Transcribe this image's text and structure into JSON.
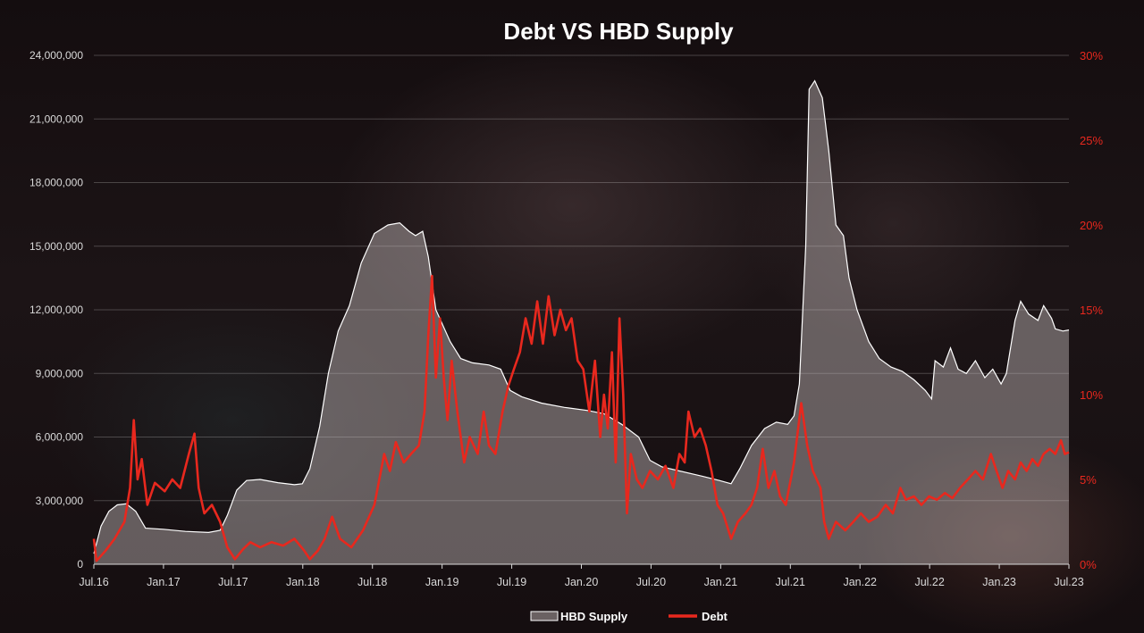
{
  "chart_data": {
    "type": "line",
    "title": "Debt VS HBD Supply",
    "x_ticks": [
      "Jul.16",
      "Jan.17",
      "Jul.17",
      "Jan.18",
      "Jul.18",
      "Jan.19",
      "Jul.19",
      "Jan.20",
      "Jul.20",
      "Jan.21",
      "Jul.21",
      "Jan.22",
      "Jul.22",
      "Jan.23",
      "Jul.23"
    ],
    "y_left": {
      "ticks": [
        "0",
        "3,000,000",
        "6,000,000",
        "9,000,000",
        "12,000,000",
        "15,000,000",
        "18,000,000",
        "21,000,000",
        "24,000,000"
      ],
      "range": [
        0,
        24000000
      ]
    },
    "y_right": {
      "ticks": [
        "0%",
        "5%",
        "10%",
        "15%",
        "20%",
        "25%",
        "30%"
      ],
      "range": [
        0,
        30
      ],
      "color": "#e8281e"
    },
    "legend": {
      "position": "bottom",
      "items": [
        "HBD Supply",
        "Debt"
      ]
    },
    "grid": true,
    "series": [
      {
        "name": "HBD Supply",
        "type": "area",
        "axis": "left",
        "color": "#ffffff",
        "fill": "rgba(210,200,200,0.42)",
        "points": [
          [
            "2016-07-01",
            500000
          ],
          [
            "2016-07-20",
            1800000
          ],
          [
            "2016-08-10",
            2500000
          ],
          [
            "2016-09-01",
            2800000
          ],
          [
            "2016-09-25",
            2850000
          ],
          [
            "2016-10-20",
            2500000
          ],
          [
            "2016-11-15",
            1700000
          ],
          [
            "2017-01-01",
            1650000
          ],
          [
            "2017-03-01",
            1550000
          ],
          [
            "2017-05-01",
            1500000
          ],
          [
            "2017-06-01",
            1600000
          ],
          [
            "2017-06-20",
            2300000
          ],
          [
            "2017-07-15",
            3500000
          ],
          [
            "2017-08-10",
            3950000
          ],
          [
            "2017-09-15",
            4000000
          ],
          [
            "2017-11-01",
            3850000
          ],
          [
            "2017-12-15",
            3750000
          ],
          [
            "2018-01-05",
            3800000
          ],
          [
            "2018-01-25",
            4500000
          ],
          [
            "2018-02-20",
            6500000
          ],
          [
            "2018-03-15",
            9000000
          ],
          [
            "2018-04-10",
            11000000
          ],
          [
            "2018-05-10",
            12200000
          ],
          [
            "2018-06-10",
            14200000
          ],
          [
            "2018-07-15",
            15600000
          ],
          [
            "2018-08-20",
            16000000
          ],
          [
            "2018-09-20",
            16100000
          ],
          [
            "2018-10-15",
            15700000
          ],
          [
            "2018-11-01",
            15500000
          ],
          [
            "2018-11-20",
            15700000
          ],
          [
            "2018-12-05",
            14500000
          ],
          [
            "2018-12-25",
            12000000
          ],
          [
            "2019-02-01",
            10500000
          ],
          [
            "2019-03-01",
            9700000
          ],
          [
            "2019-04-01",
            9500000
          ],
          [
            "2019-05-15",
            9400000
          ],
          [
            "2019-06-15",
            9200000
          ],
          [
            "2019-07-10",
            8200000
          ],
          [
            "2019-08-10",
            7900000
          ],
          [
            "2019-10-01",
            7600000
          ],
          [
            "2019-12-01",
            7400000
          ],
          [
            "2020-02-01",
            7250000
          ],
          [
            "2020-03-15",
            7100000
          ],
          [
            "2020-05-01",
            6600000
          ],
          [
            "2020-06-15",
            6000000
          ],
          [
            "2020-07-15",
            4900000
          ],
          [
            "2020-08-15",
            4600000
          ],
          [
            "2020-10-01",
            4400000
          ],
          [
            "2020-12-01",
            4150000
          ],
          [
            "2021-01-15",
            3950000
          ],
          [
            "2021-02-15",
            3800000
          ],
          [
            "2021-03-10",
            4500000
          ],
          [
            "2021-04-10",
            5600000
          ],
          [
            "2021-05-15",
            6400000
          ],
          [
            "2021-06-15",
            6700000
          ],
          [
            "2021-07-15",
            6600000
          ],
          [
            "2021-08-01",
            7000000
          ],
          [
            "2021-08-15",
            8500000
          ],
          [
            "2021-09-01",
            15000000
          ],
          [
            "2021-09-10",
            22400000
          ],
          [
            "2021-09-25",
            22800000
          ],
          [
            "2021-10-15",
            22000000
          ],
          [
            "2021-11-01",
            19500000
          ],
          [
            "2021-11-20",
            16000000
          ],
          [
            "2021-12-10",
            15500000
          ],
          [
            "2021-12-25",
            13500000
          ],
          [
            "2022-01-15",
            12000000
          ],
          [
            "2022-02-15",
            10500000
          ],
          [
            "2022-03-15",
            9700000
          ],
          [
            "2022-04-15",
            9300000
          ],
          [
            "2022-05-15",
            9100000
          ],
          [
            "2022-06-15",
            8700000
          ],
          [
            "2022-07-15",
            8200000
          ],
          [
            "2022-08-01",
            7800000
          ],
          [
            "2022-08-10",
            9600000
          ],
          [
            "2022-09-01",
            9300000
          ],
          [
            "2022-09-20",
            10200000
          ],
          [
            "2022-10-10",
            9200000
          ],
          [
            "2022-11-01",
            9000000
          ],
          [
            "2022-11-25",
            9600000
          ],
          [
            "2022-12-20",
            8800000
          ],
          [
            "2023-01-10",
            9200000
          ],
          [
            "2023-02-01",
            8500000
          ],
          [
            "2023-02-15",
            9000000
          ],
          [
            "2023-03-10",
            11500000
          ],
          [
            "2023-03-25",
            12400000
          ],
          [
            "2023-04-15",
            11800000
          ],
          [
            "2023-05-10",
            11500000
          ],
          [
            "2023-05-25",
            12200000
          ],
          [
            "2023-06-15",
            11600000
          ],
          [
            "2023-06-25",
            11100000
          ],
          [
            "2023-07-15",
            11000000
          ],
          [
            "2023-07-31",
            11050000
          ]
        ]
      },
      {
        "name": "Debt",
        "type": "line",
        "axis": "right",
        "color": "#e8281e",
        "points": [
          [
            "2016-07-01",
            1.5
          ],
          [
            "2016-07-08",
            0.2
          ],
          [
            "2016-08-01",
            0.8
          ],
          [
            "2016-08-25",
            1.5
          ],
          [
            "2016-09-20",
            2.5
          ],
          [
            "2016-10-05",
            4.5
          ],
          [
            "2016-10-15",
            8.5
          ],
          [
            "2016-10-25",
            5.0
          ],
          [
            "2016-11-05",
            6.2
          ],
          [
            "2016-11-20",
            3.5
          ],
          [
            "2016-12-10",
            4.8
          ],
          [
            "2017-01-05",
            4.3
          ],
          [
            "2017-01-25",
            5.0
          ],
          [
            "2017-02-15",
            4.5
          ],
          [
            "2017-03-10",
            6.5
          ],
          [
            "2017-03-25",
            7.7
          ],
          [
            "2017-04-05",
            4.5
          ],
          [
            "2017-04-20",
            3.0
          ],
          [
            "2017-05-10",
            3.5
          ],
          [
            "2017-06-01",
            2.5
          ],
          [
            "2017-06-20",
            1.0
          ],
          [
            "2017-07-10",
            0.3
          ],
          [
            "2017-08-01",
            0.9
          ],
          [
            "2017-08-20",
            1.3
          ],
          [
            "2017-09-15",
            1.0
          ],
          [
            "2017-10-15",
            1.3
          ],
          [
            "2017-11-15",
            1.1
          ],
          [
            "2017-12-15",
            1.5
          ],
          [
            "2018-01-10",
            0.8
          ],
          [
            "2018-01-25",
            0.3
          ],
          [
            "2018-02-15",
            0.8
          ],
          [
            "2018-03-05",
            1.5
          ],
          [
            "2018-03-25",
            2.8
          ],
          [
            "2018-04-15",
            1.5
          ],
          [
            "2018-05-15",
            1.0
          ],
          [
            "2018-06-15",
            2.0
          ],
          [
            "2018-07-15",
            3.5
          ],
          [
            "2018-08-10",
            6.5
          ],
          [
            "2018-08-25",
            5.5
          ],
          [
            "2018-09-10",
            7.2
          ],
          [
            "2018-10-01",
            6.0
          ],
          [
            "2018-10-20",
            6.5
          ],
          [
            "2018-11-10",
            7.0
          ],
          [
            "2018-11-25",
            9.0
          ],
          [
            "2018-12-05",
            13.5
          ],
          [
            "2018-12-15",
            17.0
          ],
          [
            "2018-12-25",
            11.0
          ],
          [
            "2019-01-05",
            14.5
          ],
          [
            "2019-01-15",
            11.0
          ],
          [
            "2019-01-25",
            8.5
          ],
          [
            "2019-02-05",
            12.0
          ],
          [
            "2019-02-20",
            9.0
          ],
          [
            "2019-03-10",
            6.0
          ],
          [
            "2019-03-25",
            7.5
          ],
          [
            "2019-04-15",
            6.5
          ],
          [
            "2019-05-01",
            9.0
          ],
          [
            "2019-05-15",
            7.0
          ],
          [
            "2019-06-01",
            6.5
          ],
          [
            "2019-06-20",
            9.0
          ],
          [
            "2019-07-05",
            10.5
          ],
          [
            "2019-07-20",
            11.5
          ],
          [
            "2019-08-05",
            12.5
          ],
          [
            "2019-08-20",
            14.5
          ],
          [
            "2019-09-05",
            13.0
          ],
          [
            "2019-09-20",
            15.5
          ],
          [
            "2019-10-05",
            13.0
          ],
          [
            "2019-10-20",
            15.8
          ],
          [
            "2019-11-05",
            13.5
          ],
          [
            "2019-11-20",
            15.0
          ],
          [
            "2019-12-05",
            13.8
          ],
          [
            "2019-12-20",
            14.5
          ],
          [
            "2020-01-05",
            12.0
          ],
          [
            "2020-01-20",
            11.5
          ],
          [
            "2020-02-05",
            9.0
          ],
          [
            "2020-02-20",
            12.0
          ],
          [
            "2020-03-05",
            7.5
          ],
          [
            "2020-03-15",
            10.0
          ],
          [
            "2020-03-25",
            8.0
          ],
          [
            "2020-04-05",
            12.5
          ],
          [
            "2020-04-15",
            6.0
          ],
          [
            "2020-04-25",
            14.5
          ],
          [
            "2020-05-05",
            10.0
          ],
          [
            "2020-05-15",
            3.0
          ],
          [
            "2020-05-25",
            6.5
          ],
          [
            "2020-06-10",
            5.0
          ],
          [
            "2020-06-25",
            4.5
          ],
          [
            "2020-07-15",
            5.5
          ],
          [
            "2020-08-05",
            5.0
          ],
          [
            "2020-08-25",
            5.8
          ],
          [
            "2020-09-15",
            4.5
          ],
          [
            "2020-10-01",
            6.5
          ],
          [
            "2020-10-15",
            6.0
          ],
          [
            "2020-10-25",
            9.0
          ],
          [
            "2020-11-10",
            7.5
          ],
          [
            "2020-11-25",
            8.0
          ],
          [
            "2020-12-10",
            7.0
          ],
          [
            "2020-12-25",
            5.5
          ],
          [
            "2021-01-10",
            3.5
          ],
          [
            "2021-01-25",
            3.0
          ],
          [
            "2021-02-15",
            1.5
          ],
          [
            "2021-03-05",
            2.5
          ],
          [
            "2021-03-25",
            3.0
          ],
          [
            "2021-04-10",
            3.5
          ],
          [
            "2021-04-25",
            4.5
          ],
          [
            "2021-05-10",
            6.8
          ],
          [
            "2021-05-25",
            4.5
          ],
          [
            "2021-06-10",
            5.5
          ],
          [
            "2021-06-25",
            4.0
          ],
          [
            "2021-07-10",
            3.5
          ],
          [
            "2021-08-01",
            6.0
          ],
          [
            "2021-08-20",
            9.5
          ],
          [
            "2021-09-05",
            7.0
          ],
          [
            "2021-09-20",
            5.5
          ],
          [
            "2021-10-10",
            4.5
          ],
          [
            "2021-10-20",
            2.5
          ],
          [
            "2021-11-01",
            1.5
          ],
          [
            "2021-11-20",
            2.5
          ],
          [
            "2021-12-15",
            2.0
          ],
          [
            "2022-01-05",
            2.5
          ],
          [
            "2022-01-25",
            3.0
          ],
          [
            "2022-02-15",
            2.5
          ],
          [
            "2022-03-10",
            2.8
          ],
          [
            "2022-04-01",
            3.5
          ],
          [
            "2022-04-20",
            3.0
          ],
          [
            "2022-05-10",
            4.5
          ],
          [
            "2022-05-25",
            3.8
          ],
          [
            "2022-06-15",
            4.0
          ],
          [
            "2022-07-05",
            3.5
          ],
          [
            "2022-07-25",
            4.0
          ],
          [
            "2022-08-15",
            3.8
          ],
          [
            "2022-09-05",
            4.2
          ],
          [
            "2022-09-25",
            3.9
          ],
          [
            "2022-10-15",
            4.5
          ],
          [
            "2022-11-05",
            5.0
          ],
          [
            "2022-11-25",
            5.5
          ],
          [
            "2022-12-15",
            5.0
          ],
          [
            "2023-01-05",
            6.5
          ],
          [
            "2023-01-20",
            5.5
          ],
          [
            "2023-02-05",
            4.5
          ],
          [
            "2023-02-20",
            5.5
          ],
          [
            "2023-03-10",
            5.0
          ],
          [
            "2023-03-25",
            6.0
          ],
          [
            "2023-04-10",
            5.5
          ],
          [
            "2023-04-25",
            6.2
          ],
          [
            "2023-05-10",
            5.8
          ],
          [
            "2023-05-25",
            6.5
          ],
          [
            "2023-06-10",
            6.8
          ],
          [
            "2023-06-25",
            6.5
          ],
          [
            "2023-07-10",
            7.3
          ],
          [
            "2023-07-20",
            6.5
          ],
          [
            "2023-07-31",
            6.6
          ]
        ]
      }
    ]
  }
}
